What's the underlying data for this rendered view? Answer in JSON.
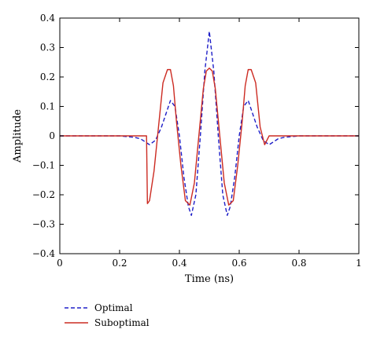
{
  "chart_data": {
    "type": "line",
    "title": "",
    "xlabel": "Time (ns)",
    "ylabel": "Amplitude",
    "xlim": [
      0,
      1
    ],
    "ylim": [
      -0.4,
      0.4
    ],
    "x_ticks": [
      0,
      0.2,
      0.4,
      0.6,
      0.8,
      1
    ],
    "x_tick_labels": [
      "0",
      "0.2",
      "0.4",
      "0.6",
      "0.8",
      "1"
    ],
    "y_ticks": [
      -0.4,
      -0.3,
      -0.2,
      -0.1,
      0,
      0.1,
      0.2,
      0.3,
      0.4
    ],
    "y_tick_labels": [
      "−0.4",
      "−0.3",
      "−0.2",
      "−0.1",
      "0",
      "0.1",
      "0.2",
      "0.3",
      "0.4"
    ],
    "grid": false,
    "legend_position": "bottom-left, below plot",
    "series": [
      {
        "name": "Optimal",
        "color": "#1f1fc8",
        "style": "dashed",
        "x": [
          0,
          0.2,
          0.25,
          0.27,
          0.3,
          0.32,
          0.34,
          0.36,
          0.37,
          0.385,
          0.4,
          0.415,
          0.43,
          0.44,
          0.455,
          0.47,
          0.485,
          0.5,
          0.515,
          0.53,
          0.545,
          0.56,
          0.57,
          0.585,
          0.6,
          0.615,
          0.63,
          0.64,
          0.66,
          0.68,
          0.7,
          0.73,
          0.75,
          0.8,
          1
        ],
        "y": [
          0,
          0,
          -0.005,
          -0.01,
          -0.03,
          -0.015,
          0.03,
          0.09,
          0.12,
          0.1,
          0.0,
          -0.14,
          -0.24,
          -0.27,
          -0.2,
          0.0,
          0.22,
          0.355,
          0.22,
          0.0,
          -0.2,
          -0.27,
          -0.24,
          -0.14,
          0.0,
          0.1,
          0.12,
          0.09,
          0.03,
          -0.015,
          -0.03,
          -0.01,
          -0.005,
          0,
          0
        ]
      },
      {
        "name": "Suboptimal",
        "color": "#cc2b22",
        "style": "solid",
        "x": [
          0,
          0.29,
          0.293,
          0.3,
          0.315,
          0.33,
          0.345,
          0.36,
          0.37,
          0.38,
          0.39,
          0.405,
          0.42,
          0.435,
          0.45,
          0.465,
          0.48,
          0.49,
          0.5,
          0.51,
          0.52,
          0.535,
          0.55,
          0.565,
          0.58,
          0.595,
          0.61,
          0.62,
          0.63,
          0.64,
          0.655,
          0.67,
          0.685,
          0.7,
          0.71,
          1
        ],
        "y": [
          0,
          0,
          -0.23,
          -0.22,
          -0.12,
          0.03,
          0.18,
          0.225,
          0.225,
          0.17,
          0.05,
          -0.1,
          -0.22,
          -0.235,
          -0.16,
          0.0,
          0.16,
          0.22,
          0.23,
          0.22,
          0.16,
          0.0,
          -0.16,
          -0.235,
          -0.22,
          -0.1,
          0.05,
          0.17,
          0.225,
          0.225,
          0.18,
          0.03,
          -0.03,
          0.0,
          0,
          0
        ]
      }
    ]
  }
}
